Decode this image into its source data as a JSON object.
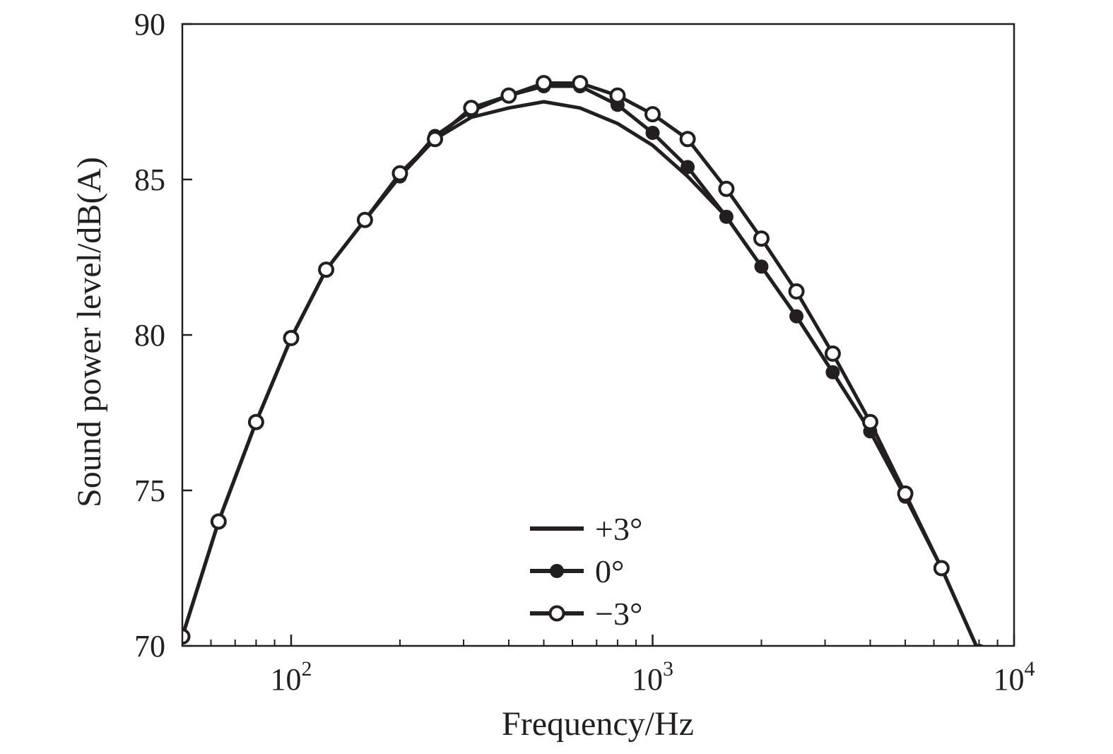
{
  "chart_data": {
    "type": "line",
    "title": "",
    "xlabel": "Frequency/Hz",
    "ylabel": "Sound power level/dB(A)",
    "xscale": "log",
    "xlim": [
      50,
      10000
    ],
    "ylim": [
      70,
      90
    ],
    "grid": false,
    "legend_position": "bottom-center",
    "x_ticks": [
      {
        "value": 100,
        "base": "10",
        "exp": "2"
      },
      {
        "value": 1000,
        "base": "10",
        "exp": "3"
      },
      {
        "value": 10000,
        "base": "10",
        "exp": "4"
      }
    ],
    "y_ticks": [
      {
        "value": 70,
        "label": "70"
      },
      {
        "value": 75,
        "label": "75"
      },
      {
        "value": 80,
        "label": "80"
      },
      {
        "value": 85,
        "label": "85"
      },
      {
        "value": 90,
        "label": "90"
      }
    ],
    "color": "#231f20",
    "series": [
      {
        "name": "+3°",
        "marker": "none",
        "x": [
          50,
          63,
          80,
          100,
          125,
          160,
          200,
          250,
          315,
          400,
          500,
          630,
          800,
          1000,
          1250,
          1600,
          2000,
          2500,
          3150,
          4000,
          5000,
          6300,
          8000
        ],
        "y": [
          70.3,
          74.0,
          77.2,
          79.9,
          82.1,
          83.7,
          85.1,
          86.3,
          87.0,
          87.3,
          87.5,
          87.3,
          86.8,
          86.1,
          85.1,
          83.8,
          82.2,
          80.6,
          78.8,
          76.9,
          74.8,
          72.5,
          69.8
        ]
      },
      {
        "name": "0°",
        "marker": "filled-circle",
        "x": [
          50,
          63,
          80,
          100,
          125,
          160,
          200,
          250,
          315,
          400,
          500,
          630,
          800,
          1000,
          1250,
          1600,
          2000,
          2500,
          3150,
          4000,
          5000,
          6300,
          8000
        ],
        "y": [
          70.3,
          74.0,
          77.2,
          79.9,
          82.1,
          83.7,
          85.1,
          86.4,
          87.2,
          87.7,
          88.0,
          88.0,
          87.4,
          86.5,
          85.4,
          83.8,
          82.2,
          80.6,
          78.8,
          76.9,
          74.8,
          72.5,
          69.8
        ]
      },
      {
        "name": "−3°",
        "marker": "open-circle",
        "x": [
          50,
          63,
          80,
          100,
          125,
          160,
          200,
          250,
          315,
          400,
          500,
          630,
          800,
          1000,
          1250,
          1600,
          2000,
          2500,
          3150,
          4000,
          5000,
          6300,
          8000
        ],
        "y": [
          70.3,
          74.0,
          77.2,
          79.9,
          82.1,
          83.7,
          85.2,
          86.3,
          87.3,
          87.7,
          88.1,
          88.1,
          87.7,
          87.1,
          86.3,
          84.7,
          83.1,
          81.4,
          79.4,
          77.2,
          74.9,
          72.5,
          69.8
        ]
      }
    ]
  }
}
